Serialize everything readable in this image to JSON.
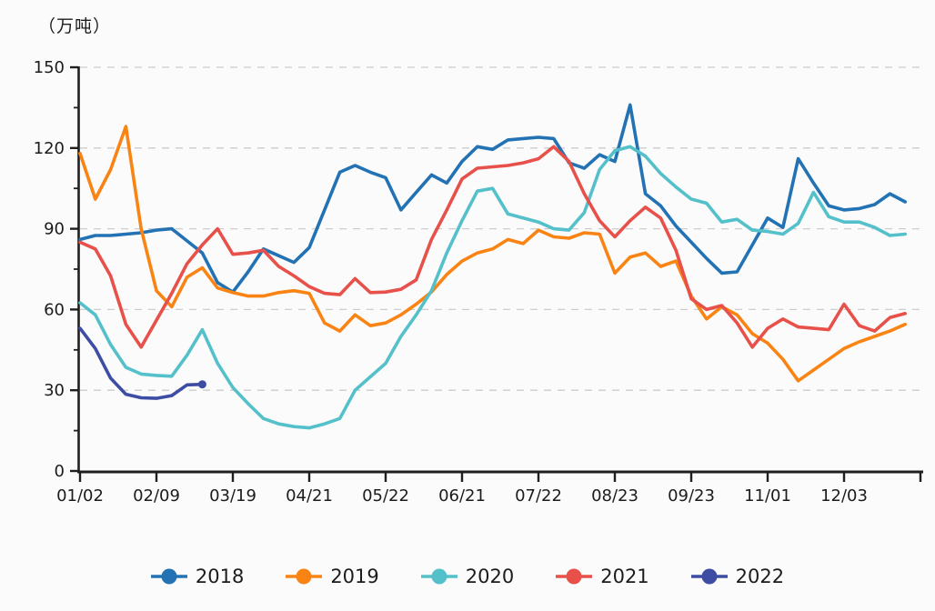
{
  "page": {
    "background": "#fbfbfc",
    "axis_color": "#1f1f1f",
    "grid_color": "#cdcdcd",
    "text_color": "#1c1c1c"
  },
  "chart_data": {
    "type": "line",
    "title": "",
    "ylabel": "（万吨）",
    "xlabel": "",
    "grid": "horizontal dashed gridlines at each major y tick",
    "legend_position": "bottom",
    "ylim": [
      0,
      150
    ],
    "y_major_ticks": [
      0,
      30,
      60,
      90,
      120,
      150
    ],
    "y_minor_step": 15,
    "x_tick_labels": [
      "01/02",
      "02/09",
      "03/19",
      "04/21",
      "05/22",
      "06/21",
      "07/22",
      "08/23",
      "09/23",
      "11/01",
      "12/03"
    ],
    "x_has_trailing_unlabeled_tick": true,
    "points_per_tick_interval": 5,
    "series": [
      {
        "name": "2018",
        "color": "#2272b4",
        "values": [
          86,
          87.5,
          87.5,
          88,
          88.5,
          89.5,
          90,
          85.5,
          81,
          70,
          66.5,
          74,
          82.5,
          80,
          77.5,
          83,
          97,
          111,
          113.5,
          111,
          109,
          97,
          103.5,
          110,
          107,
          115,
          120.5,
          119.5,
          123,
          123.5,
          124,
          123.5,
          114.5,
          112.5,
          117.5,
          115,
          136,
          103,
          98.5,
          91,
          85,
          79,
          73.5,
          74,
          84,
          94,
          90.5,
          116,
          107,
          98.5,
          97,
          97.5,
          99,
          103,
          100
        ]
      },
      {
        "name": "2019",
        "color": "#f98414",
        "values": [
          118,
          101,
          112,
          128,
          90,
          67,
          61,
          72,
          75.5,
          68,
          66.3,
          65,
          65,
          66.3,
          67,
          66,
          55,
          52,
          58,
          54,
          55,
          58,
          62,
          66.5,
          73,
          78,
          81,
          82.5,
          86,
          84.5,
          89.5,
          87,
          86.5,
          88.5,
          88,
          73.5,
          79.5,
          81,
          76,
          78,
          65,
          56.5,
          61,
          58,
          51,
          47.5,
          41.5,
          33.5,
          37.5,
          41.5,
          45.5,
          48,
          50,
          52,
          54.5
        ]
      },
      {
        "name": "2020",
        "color": "#54c0ca",
        "values": [
          62.5,
          58,
          47,
          38.5,
          36,
          35.5,
          35.2,
          43,
          52.5,
          40,
          31,
          25,
          19.5,
          17.5,
          16.5,
          16,
          17.5,
          19.5,
          30,
          35,
          40,
          50,
          58,
          67,
          81,
          93,
          104,
          105,
          95.5,
          94,
          92.5,
          90,
          89.5,
          96,
          112,
          119,
          120.5,
          117,
          110.5,
          105.5,
          101,
          99.5,
          92.5,
          93.5,
          89.5,
          89,
          88,
          92,
          103.5,
          94.5,
          92.5,
          92.5,
          90.5,
          87.5,
          88
        ]
      },
      {
        "name": "2021",
        "color": "#e8504a",
        "values": [
          85,
          82.5,
          72.5,
          54.5,
          46,
          56,
          66,
          77,
          84,
          90,
          80.5,
          81,
          82,
          76,
          72.5,
          68.5,
          66,
          65.5,
          71.5,
          66.3,
          66.5,
          67.5,
          71,
          86,
          97,
          108.5,
          112.5,
          113,
          113.5,
          114.5,
          116,
          120.5,
          115,
          103,
          93,
          87,
          93,
          98,
          94,
          82,
          64,
          60,
          61.5,
          55,
          46,
          53,
          56.5,
          53.5,
          53,
          52.5,
          62,
          54,
          52,
          57,
          58.5
        ]
      },
      {
        "name": "2022",
        "color": "#3d4da3",
        "end_marker": true,
        "values": [
          53,
          45.5,
          34.5,
          28.5,
          27.2,
          27,
          28,
          32,
          32.2
        ]
      }
    ]
  }
}
